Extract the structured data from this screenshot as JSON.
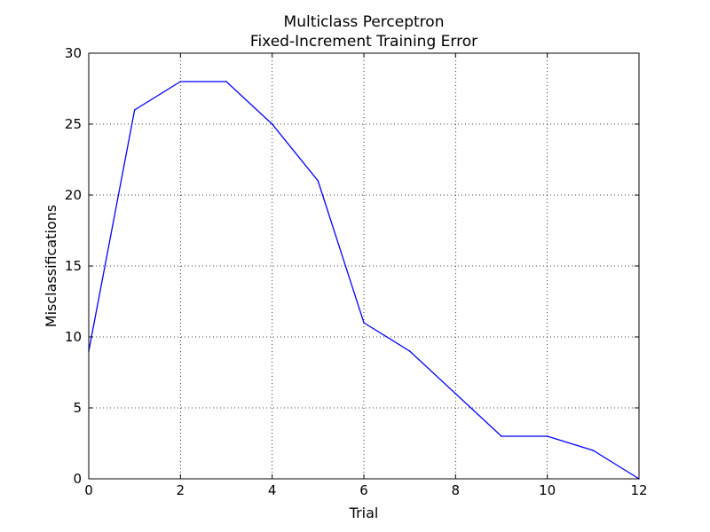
{
  "chart_data": {
    "type": "line",
    "title": [
      "Multiclass Perceptron",
      "Fixed-Increment Training Error"
    ],
    "xlabel": "Trial",
    "ylabel": "Misclassifications",
    "xlim": [
      0,
      12
    ],
    "ylim": [
      0,
      30
    ],
    "xticks": [
      0,
      2,
      4,
      6,
      8,
      10,
      12
    ],
    "yticks": [
      0,
      5,
      10,
      15,
      20,
      25,
      30
    ],
    "grid": true,
    "series": [
      {
        "color": "#0000ff",
        "x": [
          0,
          1,
          2,
          3,
          4,
          5,
          6,
          7,
          8,
          9,
          10,
          11,
          12
        ],
        "y": [
          9,
          26,
          28,
          28,
          25,
          21,
          11,
          9,
          6,
          3,
          3,
          2,
          0
        ]
      }
    ]
  }
}
